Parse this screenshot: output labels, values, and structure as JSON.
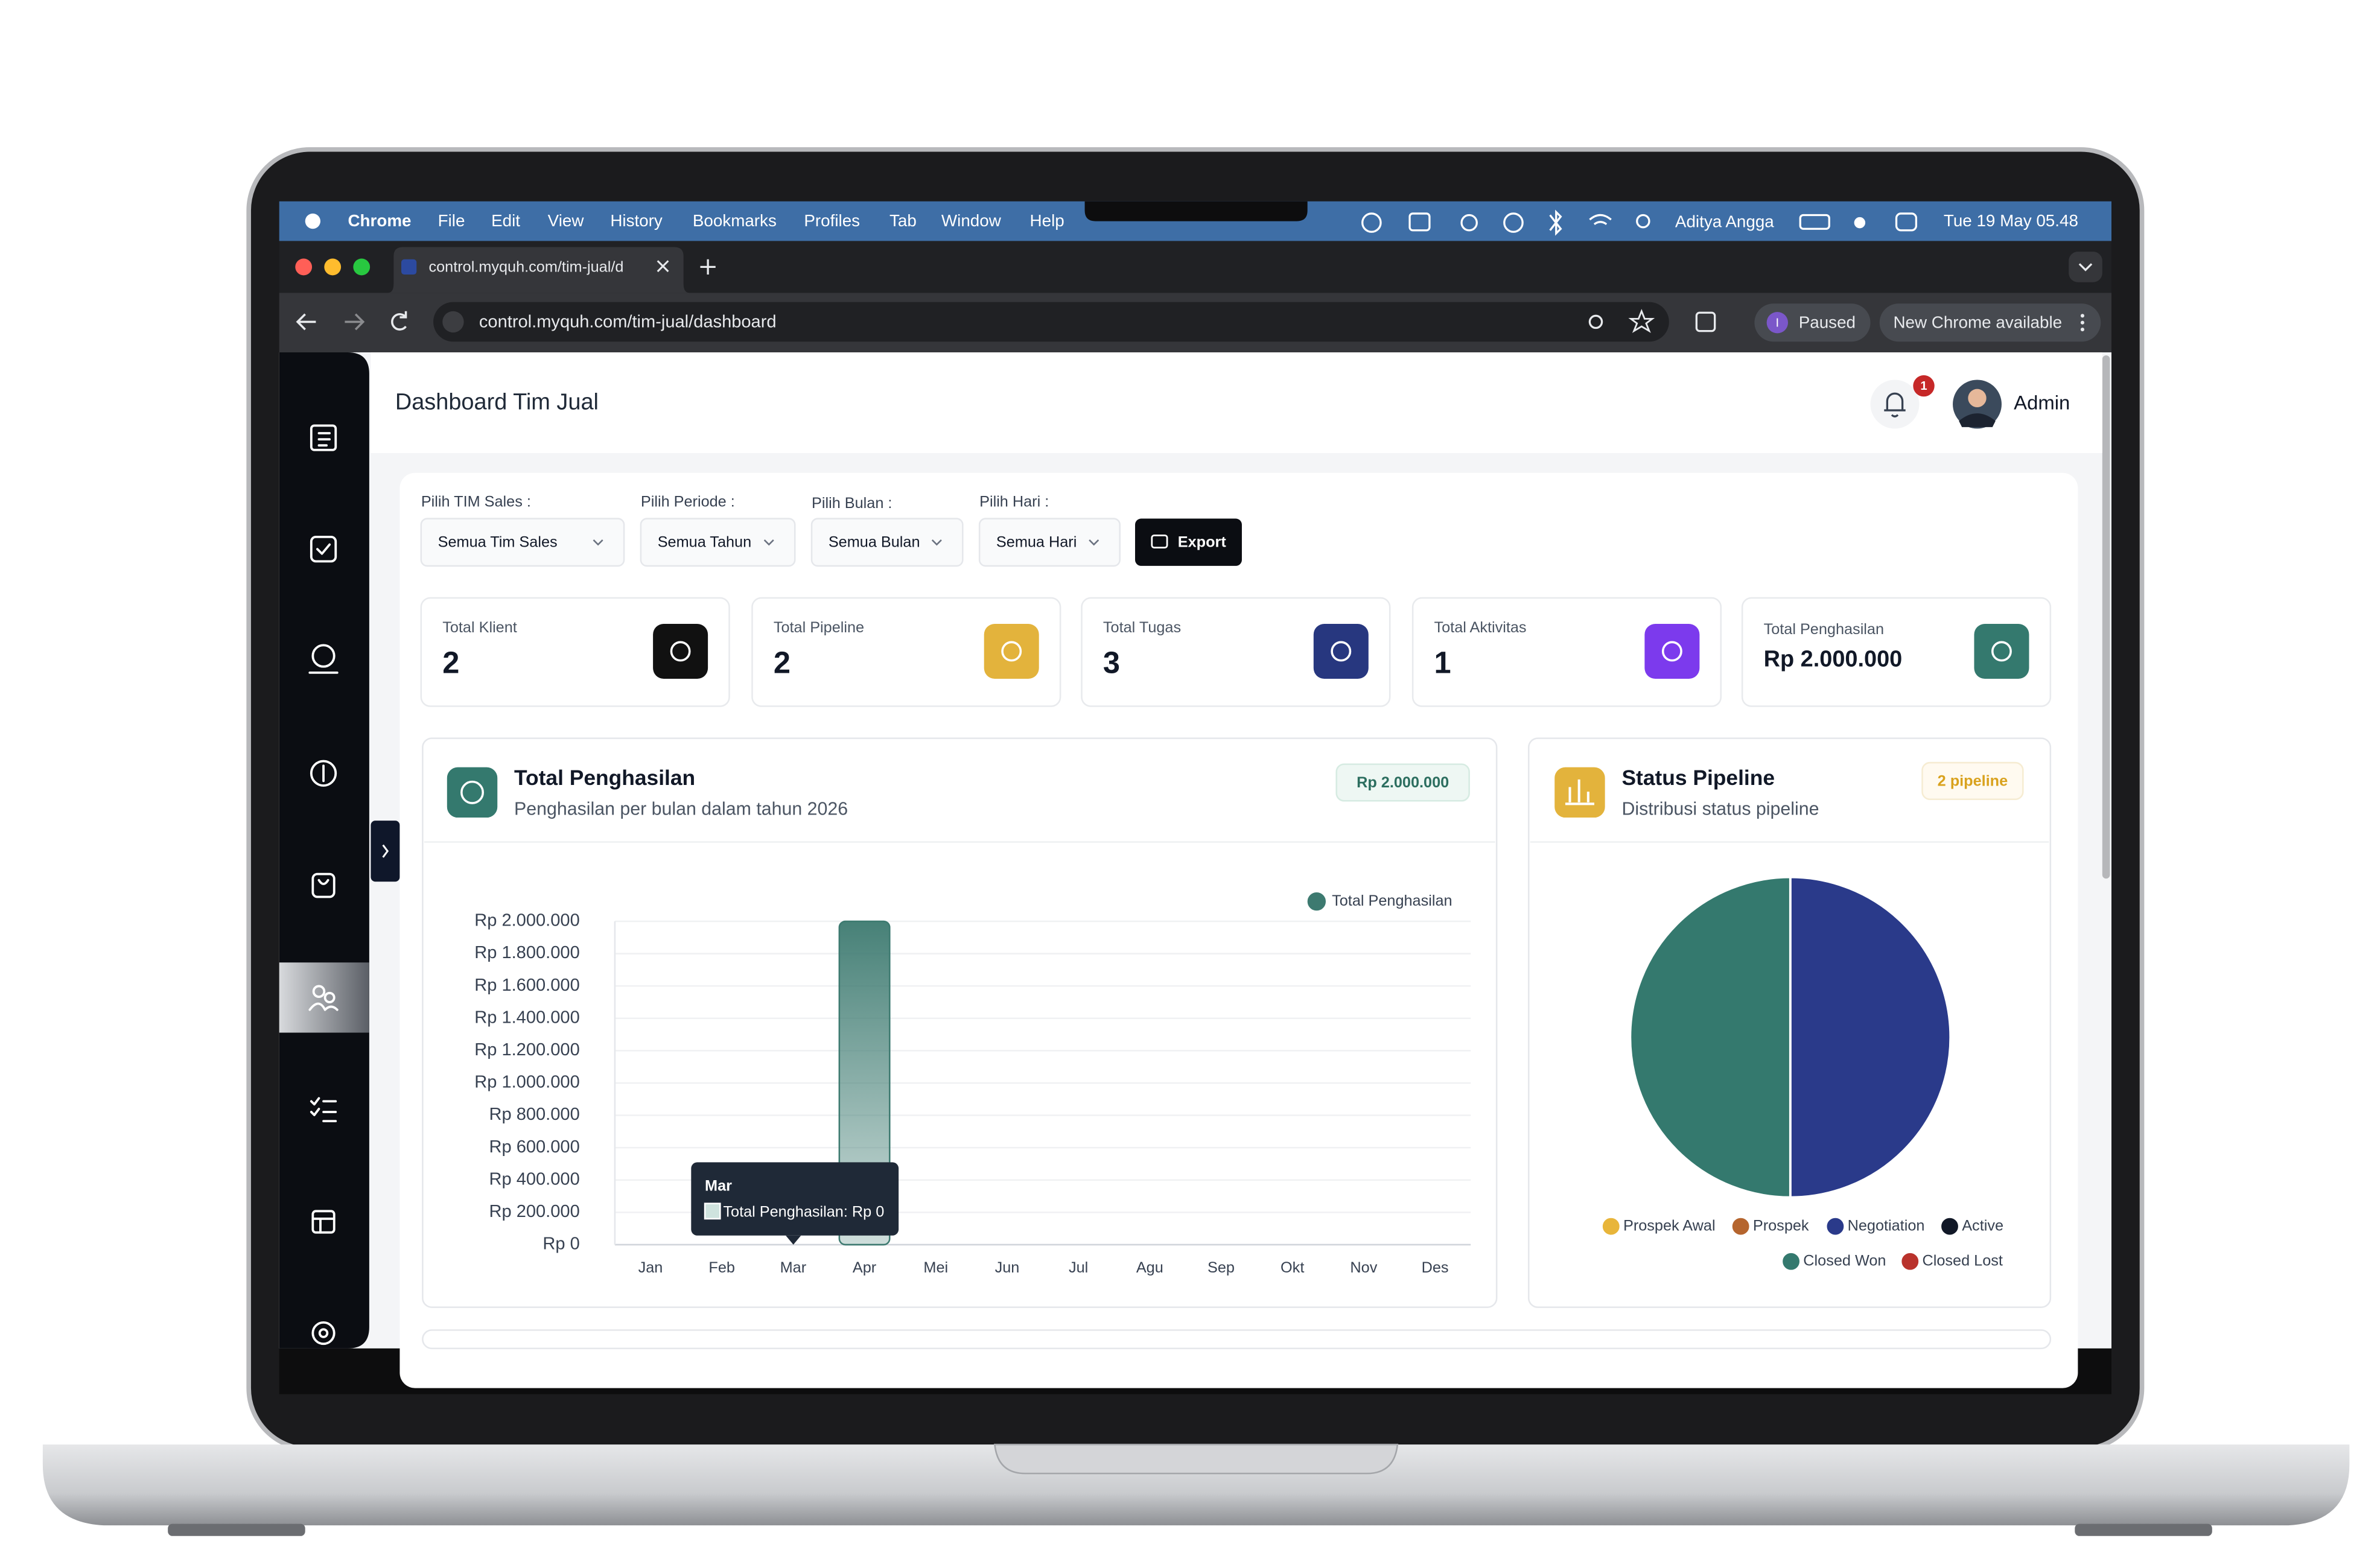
{
  "menu_bar": {
    "app": "Chrome",
    "items": [
      "File",
      "Edit",
      "View",
      "History",
      "Bookmarks",
      "Profiles",
      "Tab",
      "Window",
      "Help"
    ],
    "user": "Aditya Angga",
    "datetime": "Tue 19 May 05.48"
  },
  "browser": {
    "tab_title": "control.myquh.com/tim-jual/d",
    "url": "control.myquh.com/tim-jual/dashboard",
    "profile_initial": "I",
    "profile_status": "Paused",
    "update_notice": "New Chrome available"
  },
  "header": {
    "title": "Dashboard Tim Jual",
    "notification_count": 1,
    "user": "Admin"
  },
  "filters": [
    {
      "label": "Pilih TIM Sales :",
      "value": "Semua Tim Sales"
    },
    {
      "label": "Pilih Periode :",
      "value": "Semua Tahun"
    },
    {
      "label": "Pilih Bulan :",
      "value": "Semua Bulan"
    },
    {
      "label": "Pilih Hari :",
      "value": "Semua Hari"
    }
  ],
  "export_button": "Export",
  "stats": [
    {
      "label": "Total Klient",
      "value": 2
    },
    {
      "label": "Total Pipeline",
      "value": 2
    },
    {
      "label": "Total Tugas",
      "value": 3
    },
    {
      "label": "Total Aktivitas",
      "value": 1
    },
    {
      "label": "Total Penghasilan",
      "value": "Rp 2.000.000"
    }
  ],
  "revenue_panel": {
    "title": "Total Penghasilan",
    "subtitle": "Penghasilan per bulan dalam tahun 2026",
    "badge": "Rp 2.000.000"
  },
  "pipeline_panel": {
    "title": "Status Pipeline",
    "subtitle": "Distribusi status pipeline",
    "badge": "2 pipeline"
  },
  "chart_data": [
    {
      "type": "bar",
      "categories": [
        "Jan",
        "Feb",
        "Mar",
        "Apr",
        "Mei",
        "Jun",
        "Jul",
        "Agu",
        "Sep",
        "Okt",
        "Nov",
        "Des"
      ],
      "series": [
        {
          "name": "Total Penghasilan",
          "color": "#3d7a70",
          "values": [
            0,
            0,
            0,
            2000000,
            0,
            0,
            0,
            0,
            0,
            0,
            0,
            0
          ]
        }
      ],
      "ylim": [
        0,
        2000000
      ],
      "yticks": [
        {
          "value": 0,
          "label": "Rp 0"
        },
        {
          "value": 200000,
          "label": "Rp 200.000"
        },
        {
          "value": 400000,
          "label": "Rp 400.000"
        },
        {
          "value": 600000,
          "label": "Rp 600.000"
        },
        {
          "value": 800000,
          "label": "Rp 800.000"
        },
        {
          "value": 1000000,
          "label": "Rp 1.000.000"
        },
        {
          "value": 1200000,
          "label": "Rp 1.200.000"
        },
        {
          "value": 1400000,
          "label": "Rp 1.400.000"
        },
        {
          "value": 1600000,
          "label": "Rp 1.600.000"
        },
        {
          "value": 1800000,
          "label": "Rp 1.800.000"
        },
        {
          "value": 2000000,
          "label": "Rp 2.000.000"
        }
      ],
      "grid": true,
      "legend": "top-right",
      "tooltip": {
        "title": "Mar",
        "text": "Total Penghasilan: Rp 0"
      }
    },
    {
      "type": "pie",
      "categories": [
        "Prospek Awal",
        "Prospek",
        "Negotiation",
        "Active",
        "Closed Won",
        "Closed Lost"
      ],
      "values": [
        0,
        0,
        1,
        0,
        1,
        0
      ],
      "colors": [
        "#e8b53a",
        "#b5652e",
        "#2a3a8a",
        "#111827",
        "#34796e",
        "#b9322c"
      ],
      "legend": "bottom"
    }
  ]
}
